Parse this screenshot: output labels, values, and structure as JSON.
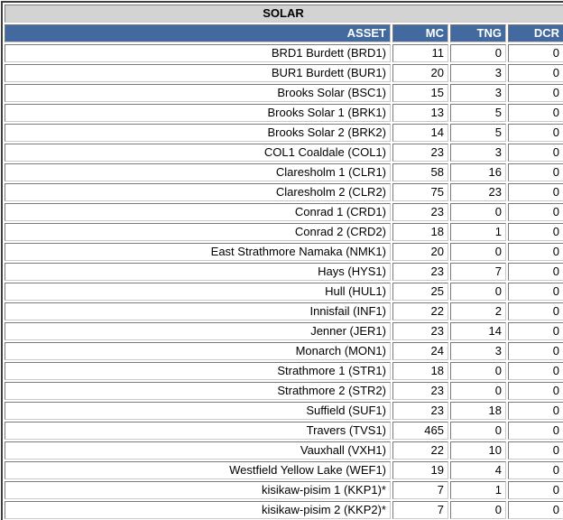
{
  "table": {
    "title": "SOLAR",
    "columns": [
      "ASSET",
      "MC",
      "TNG",
      "DCR"
    ],
    "rows": [
      [
        "BRD1 Burdett (BRD1)",
        "11",
        "0",
        "0"
      ],
      [
        "BUR1 Burdett (BUR1)",
        "20",
        "3",
        "0"
      ],
      [
        "Brooks Solar (BSC1)",
        "15",
        "3",
        "0"
      ],
      [
        "Brooks Solar 1 (BRK1)",
        "13",
        "5",
        "0"
      ],
      [
        "Brooks Solar 2 (BRK2)",
        "14",
        "5",
        "0"
      ],
      [
        "COL1 Coaldale (COL1)",
        "23",
        "3",
        "0"
      ],
      [
        "Claresholm 1 (CLR1)",
        "58",
        "16",
        "0"
      ],
      [
        "Claresholm 2 (CLR2)",
        "75",
        "23",
        "0"
      ],
      [
        "Conrad 1 (CRD1)",
        "23",
        "0",
        "0"
      ],
      [
        "Conrad 2 (CRD2)",
        "18",
        "1",
        "0"
      ],
      [
        "East Strathmore Namaka (NMK1)",
        "20",
        "0",
        "0"
      ],
      [
        "Hays (HYS1)",
        "23",
        "7",
        "0"
      ],
      [
        "Hull (HUL1)",
        "25",
        "0",
        "0"
      ],
      [
        "Innisfail (INF1)",
        "22",
        "2",
        "0"
      ],
      [
        "Jenner (JER1)",
        "23",
        "14",
        "0"
      ],
      [
        "Monarch (MON1)",
        "24",
        "3",
        "0"
      ],
      [
        "Strathmore 1 (STR1)",
        "18",
        "0",
        "0"
      ],
      [
        "Strathmore 2 (STR2)",
        "23",
        "0",
        "0"
      ],
      [
        "Suffield (SUF1)",
        "23",
        "18",
        "0"
      ],
      [
        "Travers (TVS1)",
        "465",
        "0",
        "0"
      ],
      [
        "Vauxhall (VXH1)",
        "22",
        "10",
        "0"
      ],
      [
        "Westfield Yellow Lake (WEF1)",
        "19",
        "4",
        "0"
      ],
      [
        "kisikaw-pisim 1 (KKP1)*",
        "7",
        "1",
        "0"
      ],
      [
        "kisikaw-pisim 2 (KKP2)*",
        "7",
        "0",
        "0"
      ]
    ]
  },
  "colors": {
    "header_bg": "#44699e",
    "header_text": "#ffffff",
    "title_bg": "#d3d3d3",
    "outer_border": "#3f3f3f"
  }
}
